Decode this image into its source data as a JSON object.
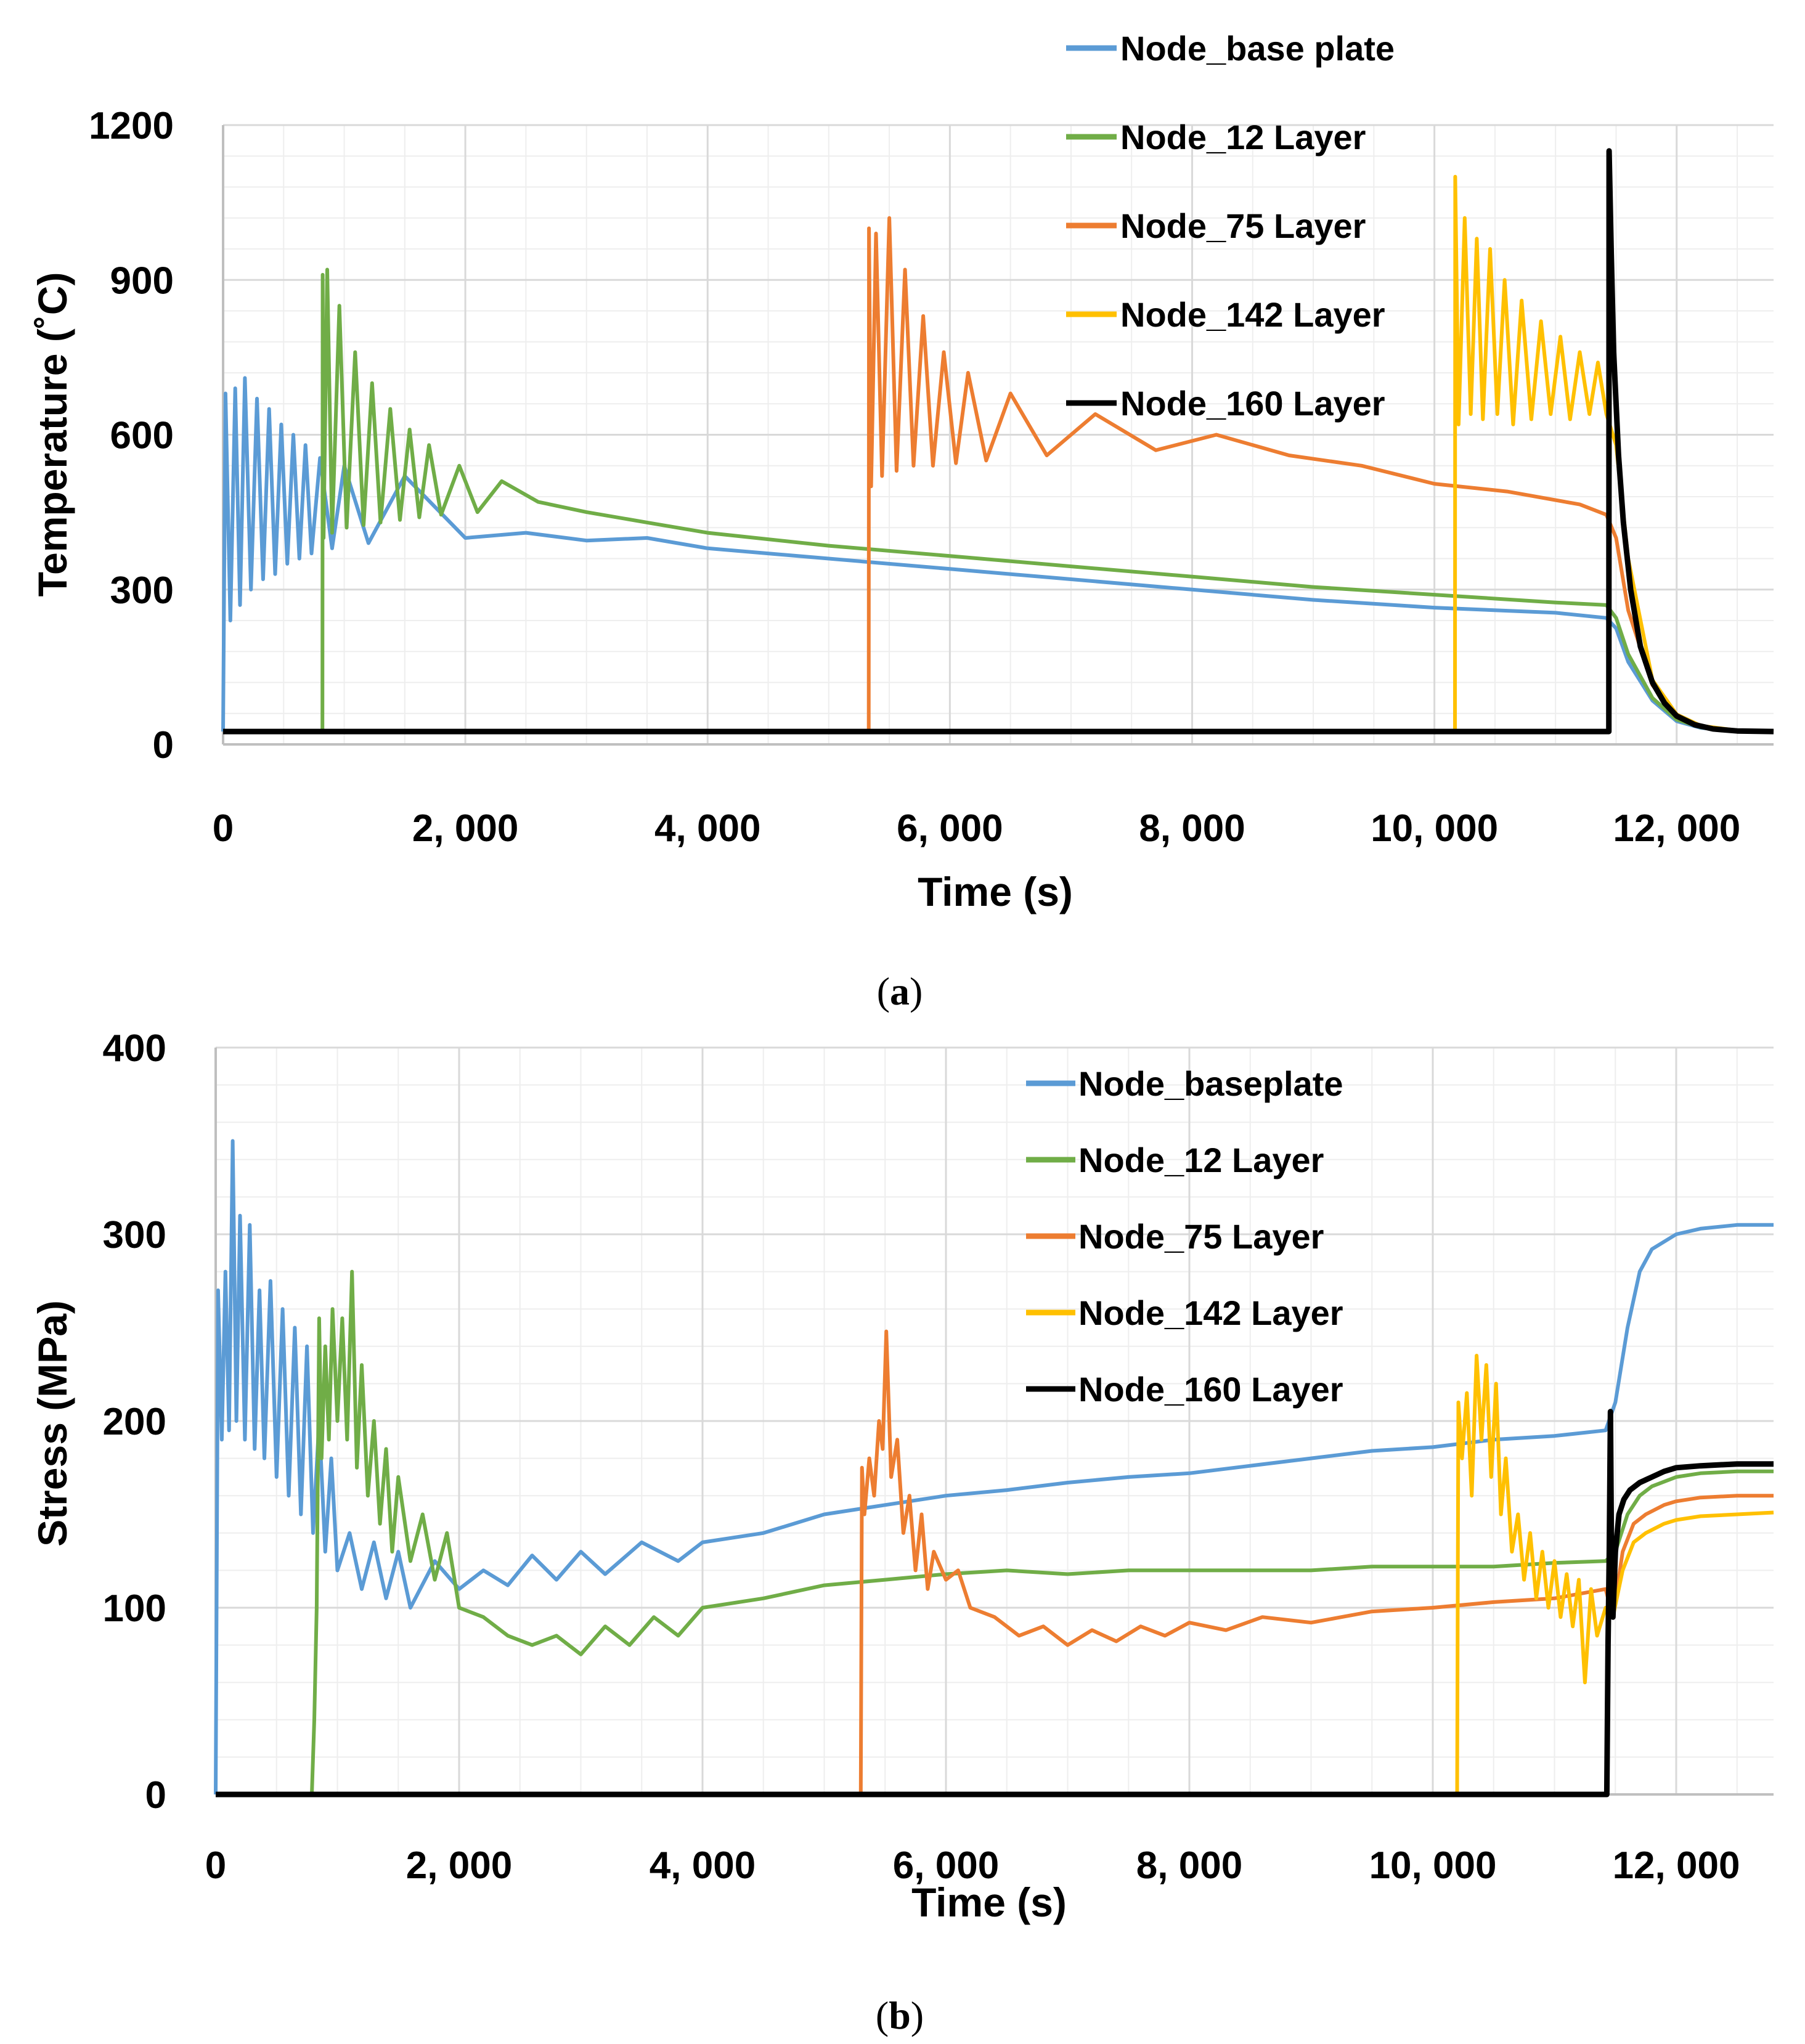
{
  "colors": {
    "base": "#5b9bd5",
    "l12": "#70ad47",
    "l75": "#ed7d31",
    "l142": "#ffc000",
    "l160": "#000000",
    "grid": "#d9d9d9",
    "axis": "#bfbfbf"
  },
  "chart_data": [
    {
      "type": "line",
      "panel": "a",
      "panel_label": {
        "open": "(",
        "letter": "a",
        "close": ")"
      },
      "xlabel": "Time (s)",
      "ylabel": "Temperature (˚C)",
      "xlim": [
        0,
        12800
      ],
      "ylim": [
        0,
        1200
      ],
      "x_ticks": [
        {
          "v": 0,
          "label": "0"
        },
        {
          "v": 2000,
          "label": "2, 000"
        },
        {
          "v": 4000,
          "label": "4, 000"
        },
        {
          "v": 6000,
          "label": "6, 000"
        },
        {
          "v": 8000,
          "label": "8, 000"
        },
        {
          "v": 10000,
          "label": "10, 000"
        },
        {
          "v": 12000,
          "label": "12, 000"
        }
      ],
      "y_ticks": [
        {
          "v": 0,
          "label": "0"
        },
        {
          "v": 300,
          "label": "300"
        },
        {
          "v": 600,
          "label": "600"
        },
        {
          "v": 900,
          "label": "900"
        },
        {
          "v": 1200,
          "label": "1200"
        }
      ],
      "grid": true,
      "legend_position": "top-right",
      "series": [
        {
          "name": "Node_base plate",
          "color_key": "base",
          "x": [
            0,
            20,
            60,
            100,
            140,
            180,
            230,
            280,
            330,
            380,
            430,
            480,
            530,
            580,
            630,
            680,
            730,
            800,
            900,
            1000,
            1200,
            1500,
            2000,
            2500,
            3000,
            3500,
            4000,
            5000,
            6000,
            7000,
            8000,
            9000,
            10000,
            11000,
            11420,
            11500,
            11600,
            11800,
            12000,
            12200,
            12500,
            12800
          ],
          "y": [
            25,
            680,
            240,
            690,
            270,
            710,
            300,
            670,
            320,
            650,
            330,
            620,
            350,
            600,
            360,
            580,
            370,
            555,
            380,
            540,
            390,
            520,
            400,
            410,
            395,
            400,
            380,
            360,
            340,
            320,
            300,
            280,
            265,
            255,
            245,
            225,
            160,
            85,
            45,
            32,
            26,
            25
          ]
        },
        {
          "name": "Node_12 Layer",
          "color_key": "l12",
          "x": [
            0,
            820,
            822,
            830,
            860,
            900,
            960,
            1020,
            1090,
            1160,
            1230,
            1300,
            1380,
            1460,
            1540,
            1620,
            1700,
            1800,
            1950,
            2100,
            2300,
            2600,
            3000,
            3500,
            4000,
            5000,
            6000,
            7000,
            8000,
            9000,
            10000,
            11000,
            11420,
            11500,
            11600,
            11800,
            12000,
            12200,
            12500,
            12800
          ],
          "y": [
            25,
            25,
            910,
            400,
            920,
            410,
            850,
            420,
            760,
            425,
            700,
            430,
            650,
            435,
            610,
            440,
            580,
            445,
            540,
            450,
            510,
            470,
            450,
            430,
            410,
            385,
            365,
            345,
            325,
            305,
            290,
            275,
            270,
            245,
            175,
            90,
            48,
            33,
            26,
            25
          ]
        },
        {
          "name": "Node_75 Layer",
          "color_key": "l75",
          "x": [
            0,
            5330,
            5332,
            5350,
            5390,
            5440,
            5500,
            5560,
            5630,
            5700,
            5780,
            5860,
            5950,
            6050,
            6150,
            6300,
            6500,
            6800,
            7200,
            7700,
            8200,
            8800,
            9400,
            10000,
            10600,
            11200,
            11420,
            11500,
            11600,
            11800,
            12000,
            12200,
            12500,
            12800
          ],
          "y": [
            25,
            25,
            1000,
            500,
            990,
            520,
            1020,
            530,
            920,
            540,
            830,
            540,
            760,
            545,
            720,
            550,
            680,
            560,
            640,
            570,
            600,
            560,
            540,
            505,
            490,
            465,
            445,
            400,
            260,
            115,
            55,
            35,
            27,
            25
          ]
        },
        {
          "name": "Node_142 Layer",
          "color_key": "l142",
          "x": [
            0,
            10170,
            10172,
            10200,
            10250,
            10300,
            10350,
            10400,
            10460,
            10520,
            10580,
            10650,
            10720,
            10800,
            10880,
            10960,
            11040,
            11120,
            11200,
            11280,
            11350,
            11420,
            11500,
            11600,
            11800,
            12000,
            12200,
            12500,
            12800
          ],
          "y": [
            25,
            25,
            1100,
            620,
            1020,
            640,
            980,
            630,
            960,
            640,
            900,
            620,
            860,
            630,
            820,
            640,
            790,
            630,
            760,
            640,
            740,
            640,
            580,
            360,
            125,
            58,
            36,
            27,
            25
          ]
        },
        {
          "name": "Node_160 Layer",
          "color_key": "l160",
          "x": [
            0,
            11440,
            11442,
            11460,
            11480,
            11520,
            11560,
            11620,
            11700,
            11800,
            11900,
            12000,
            12150,
            12300,
            12500,
            12800
          ],
          "y": [
            25,
            25,
            1150,
            950,
            760,
            560,
            430,
            300,
            190,
            120,
            80,
            55,
            38,
            30,
            26,
            25
          ]
        }
      ]
    },
    {
      "type": "line",
      "panel": "b",
      "panel_label": {
        "open": "(",
        "letter": "b",
        "close": ")"
      },
      "xlabel": "Time (s)",
      "ylabel": "Stress (MPa)",
      "xlim": [
        0,
        12800
      ],
      "ylim": [
        0,
        400
      ],
      "x_ticks": [
        {
          "v": 0,
          "label": "0"
        },
        {
          "v": 2000,
          "label": "2, 000"
        },
        {
          "v": 4000,
          "label": "4, 000"
        },
        {
          "v": 6000,
          "label": "6, 000"
        },
        {
          "v": 8000,
          "label": "8, 000"
        },
        {
          "v": 10000,
          "label": "10, 000"
        },
        {
          "v": 12000,
          "label": "12, 000"
        }
      ],
      "y_ticks": [
        {
          "v": 0,
          "label": "0"
        },
        {
          "v": 100,
          "label": "100"
        },
        {
          "v": 200,
          "label": "200"
        },
        {
          "v": 300,
          "label": "300"
        },
        {
          "v": 400,
          "label": "400"
        }
      ],
      "grid": true,
      "legend_position": "top-right",
      "series": [
        {
          "name": "Node_baseplate",
          "color_key": "base",
          "x": [
            0,
            20,
            50,
            80,
            110,
            140,
            170,
            200,
            240,
            280,
            320,
            360,
            400,
            450,
            500,
            550,
            600,
            650,
            700,
            750,
            800,
            850,
            900,
            950,
            1000,
            1100,
            1200,
            1300,
            1400,
            1500,
            1600,
            1800,
            2000,
            2200,
            2400,
            2600,
            2800,
            3000,
            3200,
            3500,
            3800,
            4000,
            4500,
            5000,
            5500,
            6000,
            6500,
            7000,
            7500,
            8000,
            8500,
            9000,
            9500,
            10000,
            10500,
            11000,
            11420,
            11500,
            11600,
            11700,
            11800,
            12000,
            12200,
            12500,
            12800
          ],
          "y": [
            0,
            270,
            190,
            280,
            195,
            350,
            200,
            310,
            190,
            305,
            185,
            270,
            180,
            275,
            170,
            260,
            160,
            250,
            150,
            240,
            140,
            200,
            130,
            180,
            120,
            140,
            110,
            135,
            105,
            130,
            100,
            125,
            110,
            120,
            112,
            128,
            115,
            130,
            118,
            135,
            125,
            135,
            140,
            150,
            155,
            160,
            163,
            167,
            170,
            172,
            176,
            180,
            184,
            186,
            190,
            192,
            195,
            210,
            250,
            280,
            292,
            300,
            303,
            305,
            305
          ]
        },
        {
          "name": "Node_12 Layer",
          "color_key": "l12",
          "x": [
            0,
            790,
            810,
            830,
            850,
            870,
            900,
            930,
            960,
            1000,
            1040,
            1080,
            1120,
            1160,
            1200,
            1250,
            1300,
            1350,
            1400,
            1450,
            1500,
            1600,
            1700,
            1800,
            1900,
            2000,
            2200,
            2400,
            2600,
            2800,
            3000,
            3200,
            3400,
            3600,
            3800,
            4000,
            4500,
            5000,
            5500,
            6000,
            6500,
            7000,
            7500,
            8000,
            8500,
            9000,
            9500,
            10000,
            10500,
            11000,
            11420,
            11500,
            11600,
            11700,
            11800,
            12000,
            12200,
            12500,
            12800
          ],
          "y": [
            0,
            0,
            40,
            100,
            255,
            180,
            240,
            190,
            260,
            200,
            255,
            190,
            280,
            175,
            230,
            160,
            200,
            145,
            185,
            130,
            170,
            125,
            150,
            115,
            140,
            100,
            95,
            85,
            80,
            85,
            75,
            90,
            80,
            95,
            85,
            100,
            105,
            112,
            115,
            118,
            120,
            118,
            120,
            120,
            120,
            120,
            122,
            122,
            122,
            124,
            125,
            130,
            150,
            160,
            165,
            170,
            172,
            173,
            173
          ]
        },
        {
          "name": "Node_75 Layer",
          "color_key": "l75",
          "x": [
            0,
            5300,
            5310,
            5330,
            5370,
            5410,
            5450,
            5480,
            5510,
            5550,
            5600,
            5650,
            5700,
            5750,
            5800,
            5850,
            5900,
            6000,
            6100,
            6200,
            6400,
            6600,
            6800,
            7000,
            7200,
            7400,
            7600,
            7800,
            8000,
            8300,
            8600,
            9000,
            9500,
            10000,
            10500,
            11000,
            11420,
            11480,
            11560,
            11650,
            11750,
            11900,
            12000,
            12200,
            12500,
            12800
          ],
          "y": [
            0,
            0,
            175,
            150,
            180,
            160,
            200,
            185,
            248,
            170,
            190,
            140,
            160,
            120,
            150,
            110,
            130,
            115,
            120,
            100,
            95,
            85,
            90,
            80,
            88,
            82,
            90,
            85,
            92,
            88,
            95,
            92,
            98,
            100,
            103,
            105,
            110,
            95,
            130,
            145,
            150,
            155,
            157,
            159,
            160,
            160
          ]
        },
        {
          "name": "Node_142 Layer",
          "color_key": "l142",
          "x": [
            0,
            10200,
            10210,
            10240,
            10280,
            10320,
            10360,
            10400,
            10440,
            10480,
            10520,
            10560,
            10600,
            10650,
            10700,
            10750,
            10800,
            10850,
            10900,
            10950,
            11000,
            11050,
            11100,
            11150,
            11200,
            11250,
            11300,
            11350,
            11420,
            11480,
            11560,
            11650,
            11750,
            11900,
            12000,
            12200,
            12500,
            12800
          ],
          "y": [
            0,
            0,
            210,
            180,
            215,
            160,
            235,
            190,
            230,
            170,
            220,
            150,
            180,
            130,
            150,
            115,
            140,
            105,
            130,
            100,
            125,
            95,
            118,
            90,
            115,
            60,
            110,
            85,
            100,
            95,
            120,
            135,
            140,
            145,
            147,
            149,
            150,
            151
          ]
        },
        {
          "name": "Node_160 Layer",
          "color_key": "l160",
          "x": [
            0,
            11430,
            11440,
            11450,
            11460,
            11470,
            11480,
            11500,
            11530,
            11570,
            11620,
            11700,
            11800,
            11900,
            12000,
            12200,
            12500,
            12800
          ],
          "y": [
            0,
            0,
            80,
            130,
            205,
            110,
            95,
            130,
            150,
            158,
            163,
            167,
            170,
            173,
            175,
            176,
            177,
            177
          ]
        }
      ]
    }
  ]
}
